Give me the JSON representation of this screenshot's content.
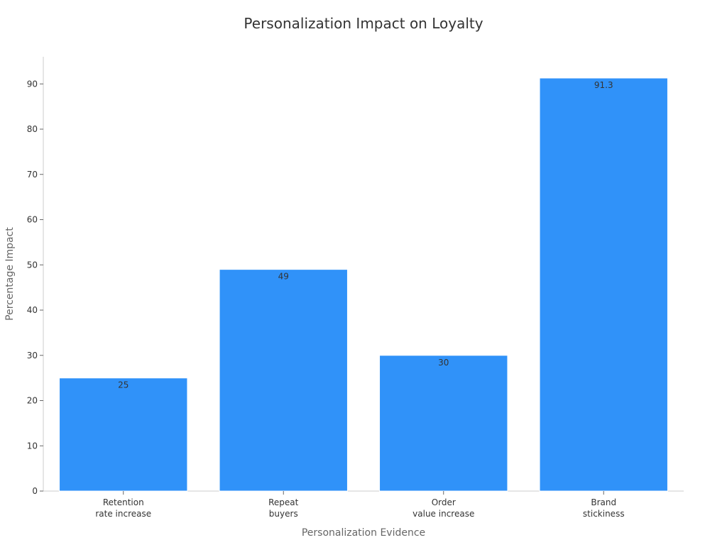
{
  "chart_data": {
    "type": "bar",
    "title": "Personalization Impact on Loyalty",
    "xlabel": "Personalization Evidence",
    "ylabel": "Percentage Impact",
    "categories": [
      [
        "Retention",
        "rate increase"
      ],
      [
        "Repeat",
        "buyers"
      ],
      [
        "Order",
        "value increase"
      ],
      [
        "Brand",
        "stickiness"
      ]
    ],
    "values": [
      25,
      49,
      30,
      91.3
    ],
    "value_labels": [
      "25",
      "49",
      "30",
      "91.3"
    ],
    "ylim": [
      0,
      96
    ],
    "yticks": [
      0,
      10,
      20,
      30,
      40,
      50,
      60,
      70,
      80,
      90
    ],
    "grid": false,
    "legend": "none",
    "bar_color": "#3092f9"
  }
}
